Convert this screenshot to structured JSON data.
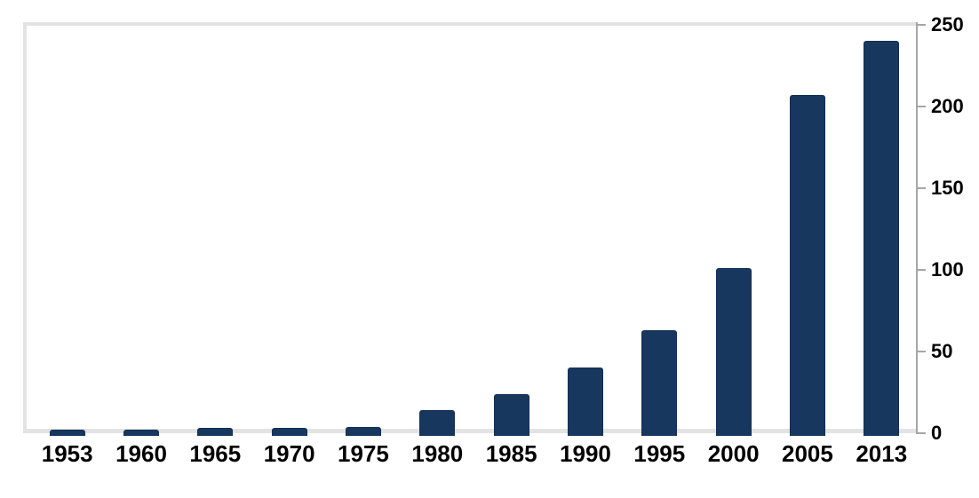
{
  "chart_data": {
    "type": "bar",
    "title": "",
    "xlabel": "",
    "ylabel": "",
    "categories": [
      "1953",
      "1960",
      "1965",
      "1970",
      "1975",
      "1980",
      "1985",
      "1990",
      "1995",
      "2000",
      "2005",
      "2013"
    ],
    "values": [
      2,
      2,
      3,
      3,
      4,
      14,
      24,
      40,
      63,
      101,
      207,
      240
    ],
    "ylim": [
      0,
      250
    ],
    "yticks": [
      0,
      50,
      100,
      150,
      200,
      250
    ],
    "y_axis_side": "right",
    "grid": false,
    "legend_position": "none",
    "colors": {
      "bar": "#17375e",
      "bar_border": "#122f54",
      "axis": "#a6a6a6",
      "frame": "#e3e3e3",
      "label": "#000000",
      "background": "#ffffff"
    }
  }
}
